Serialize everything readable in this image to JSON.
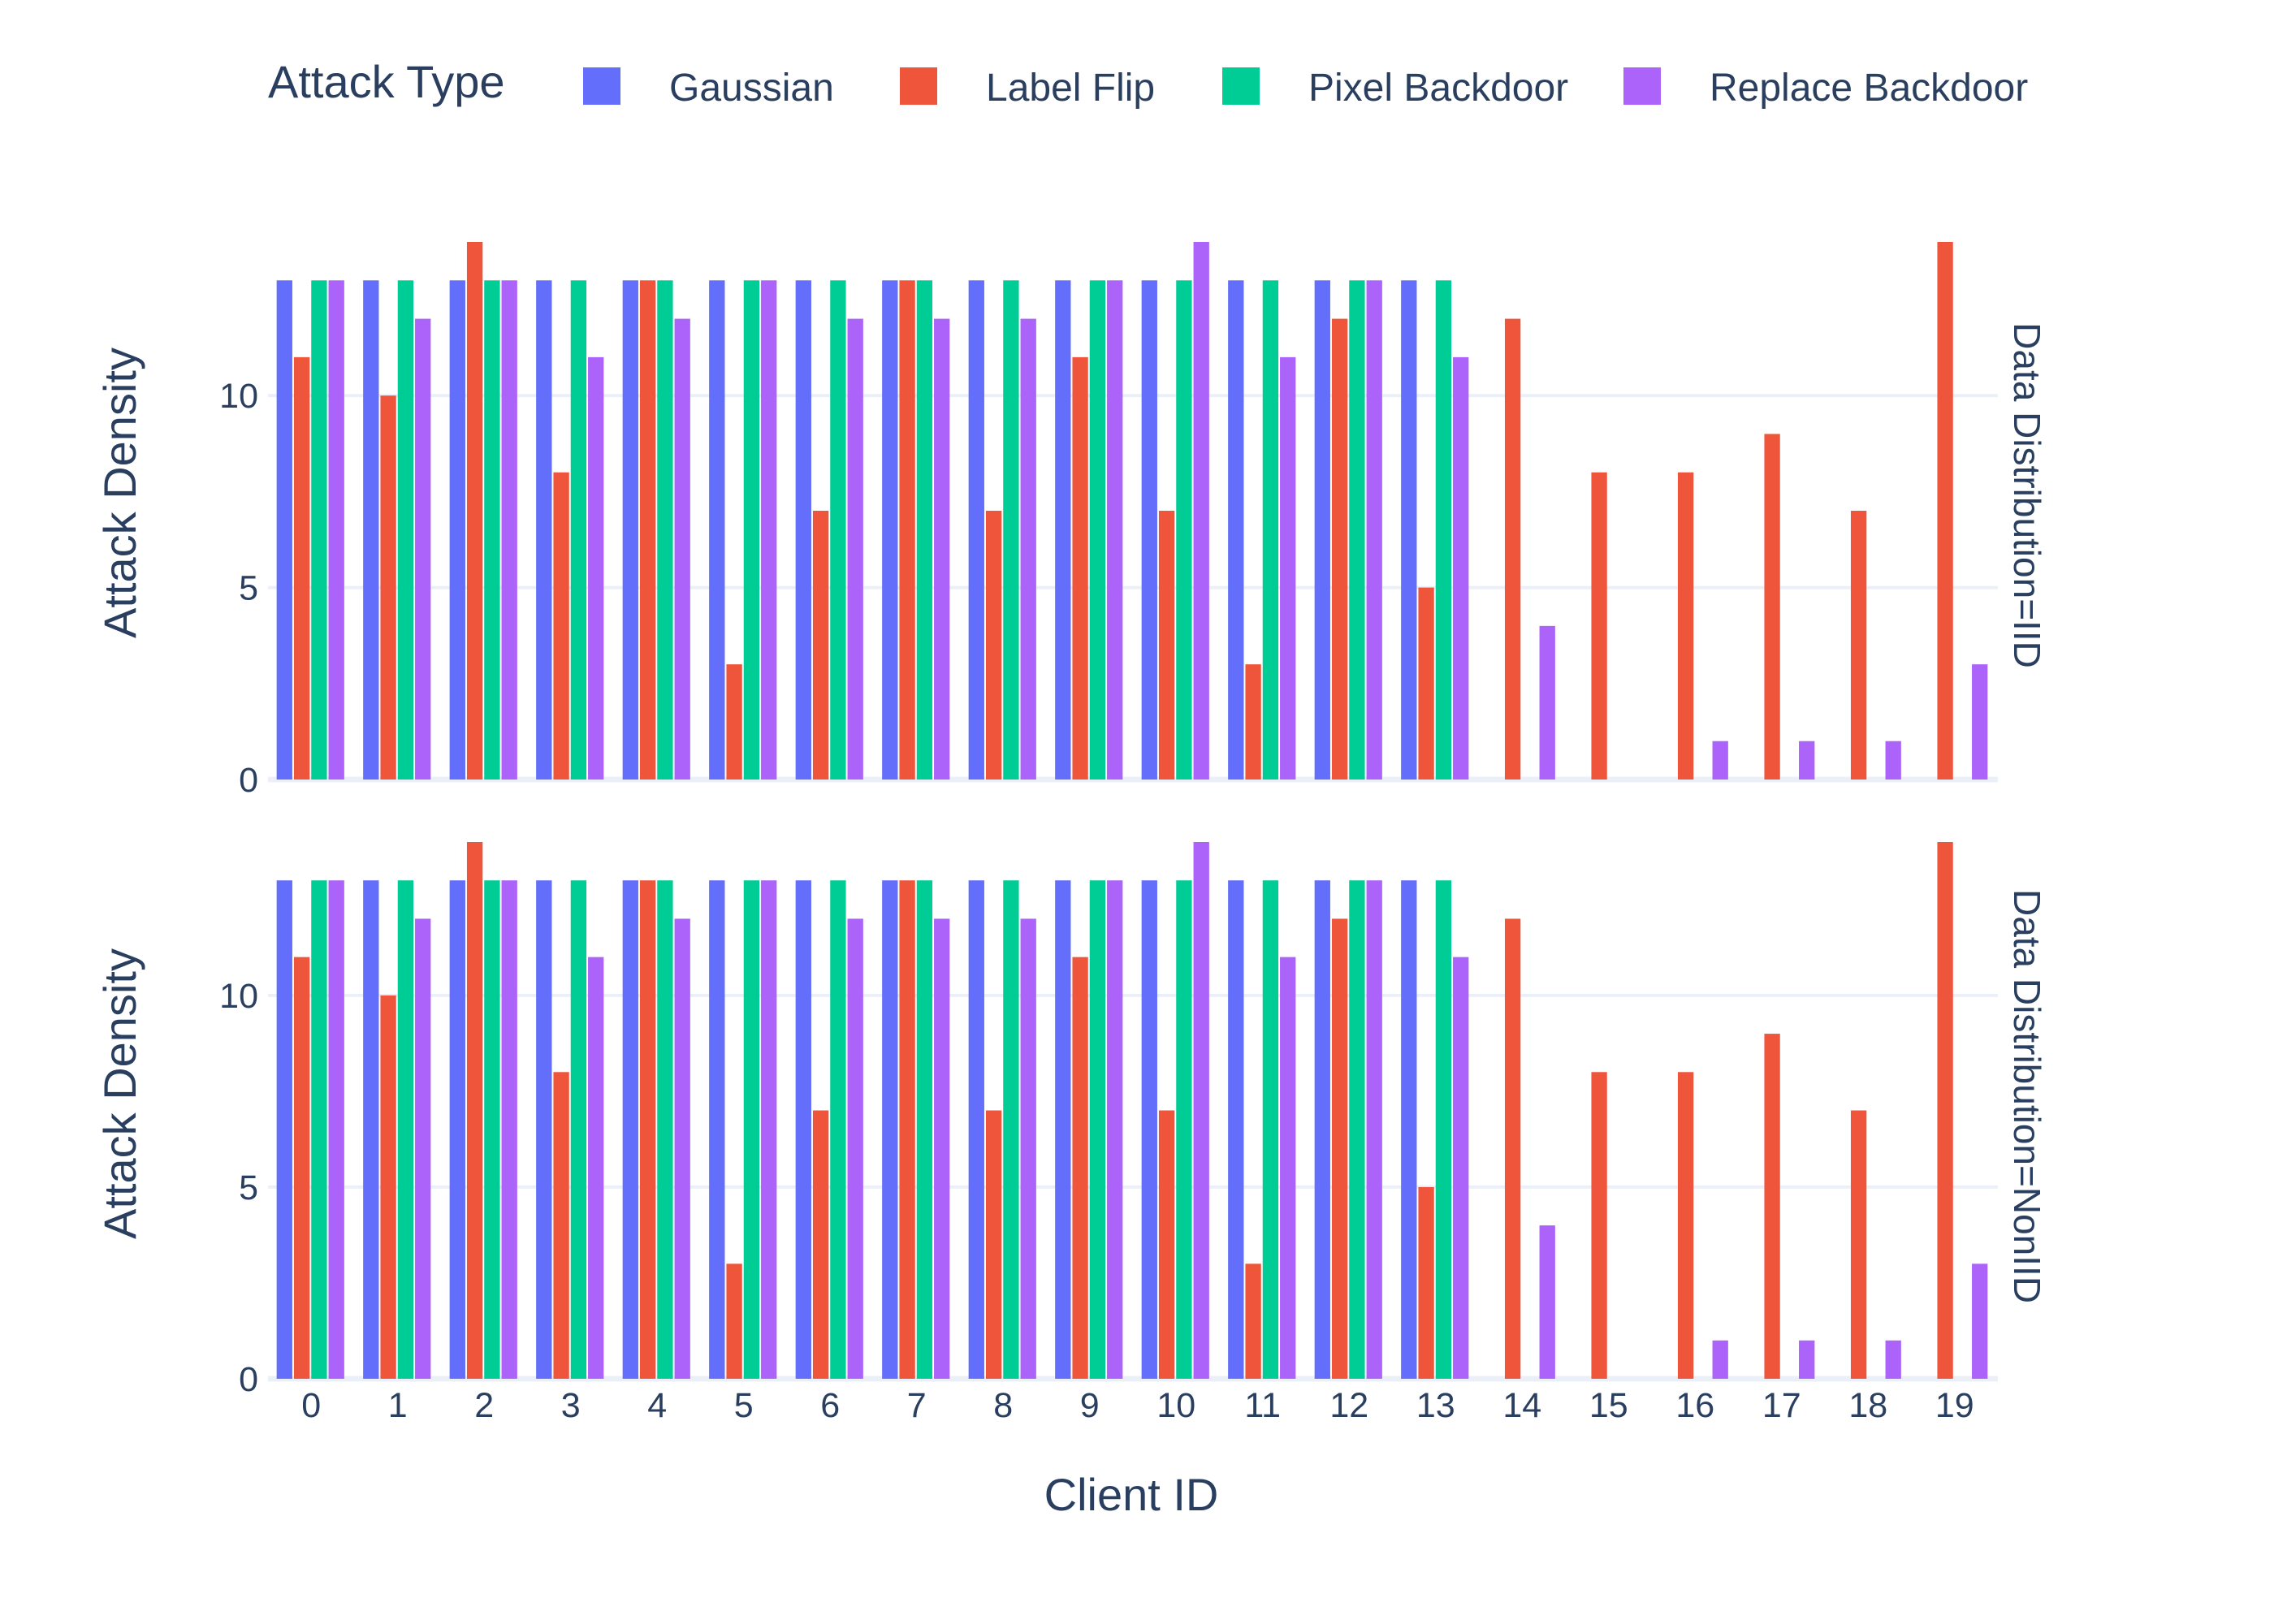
{
  "chart_data": {
    "type": "bar",
    "legend": {
      "title": "Attack Type",
      "placement": "top"
    },
    "xlabel": "Client ID",
    "ylabel": "Attack Density",
    "categories": [
      "0",
      "1",
      "2",
      "3",
      "4",
      "5",
      "6",
      "7",
      "8",
      "9",
      "10",
      "11",
      "12",
      "13",
      "14",
      "15",
      "16",
      "17",
      "18",
      "19"
    ],
    "series_defs": [
      {
        "name": "Gaussian",
        "color": "#636efa"
      },
      {
        "name": "Label Flip",
        "color": "#ef553b"
      },
      {
        "name": "Pixel Backdoor",
        "color": "#00cc96"
      },
      {
        "name": "Replace Backdoor",
        "color": "#ab63fa"
      }
    ],
    "ylim": [
      0,
      14
    ],
    "yticks": [
      0,
      5,
      10
    ],
    "grid": true,
    "panels": [
      {
        "facet_label": "Data Distribution=IID",
        "series": [
          {
            "name": "Gaussian",
            "values": [
              13,
              13,
              13,
              13,
              13,
              13,
              13,
              13,
              13,
              13,
              13,
              13,
              13,
              13,
              null,
              null,
              null,
              null,
              null,
              null
            ]
          },
          {
            "name": "Label Flip",
            "values": [
              11,
              10,
              14,
              8,
              13,
              3,
              7,
              13,
              7,
              11,
              7,
              3,
              12,
              5,
              12,
              8,
              8,
              9,
              7,
              14
            ]
          },
          {
            "name": "Pixel Backdoor",
            "values": [
              13,
              13,
              13,
              13,
              13,
              13,
              13,
              13,
              13,
              13,
              13,
              13,
              13,
              13,
              null,
              null,
              null,
              null,
              null,
              null
            ]
          },
          {
            "name": "Replace Backdoor",
            "values": [
              13,
              12,
              13,
              11,
              12,
              13,
              12,
              12,
              12,
              13,
              14,
              11,
              13,
              11,
              4,
              null,
              1,
              1,
              1,
              3
            ]
          }
        ]
      },
      {
        "facet_label": "Data Distribution=NonIID",
        "series": [
          {
            "name": "Gaussian",
            "values": [
              13,
              13,
              13,
              13,
              13,
              13,
              13,
              13,
              13,
              13,
              13,
              13,
              13,
              13,
              null,
              null,
              null,
              null,
              null,
              null
            ]
          },
          {
            "name": "Label Flip",
            "values": [
              11,
              10,
              14,
              8,
              13,
              3,
              7,
              13,
              7,
              11,
              7,
              3,
              12,
              5,
              12,
              8,
              8,
              9,
              7,
              14
            ]
          },
          {
            "name": "Pixel Backdoor",
            "values": [
              13,
              13,
              13,
              13,
              13,
              13,
              13,
              13,
              13,
              13,
              13,
              13,
              13,
              13,
              null,
              null,
              null,
              null,
              null,
              null
            ]
          },
          {
            "name": "Replace Backdoor",
            "values": [
              13,
              12,
              13,
              11,
              12,
              13,
              12,
              12,
              12,
              13,
              14,
              11,
              13,
              11,
              4,
              null,
              1,
              1,
              1,
              3
            ]
          }
        ]
      }
    ]
  }
}
